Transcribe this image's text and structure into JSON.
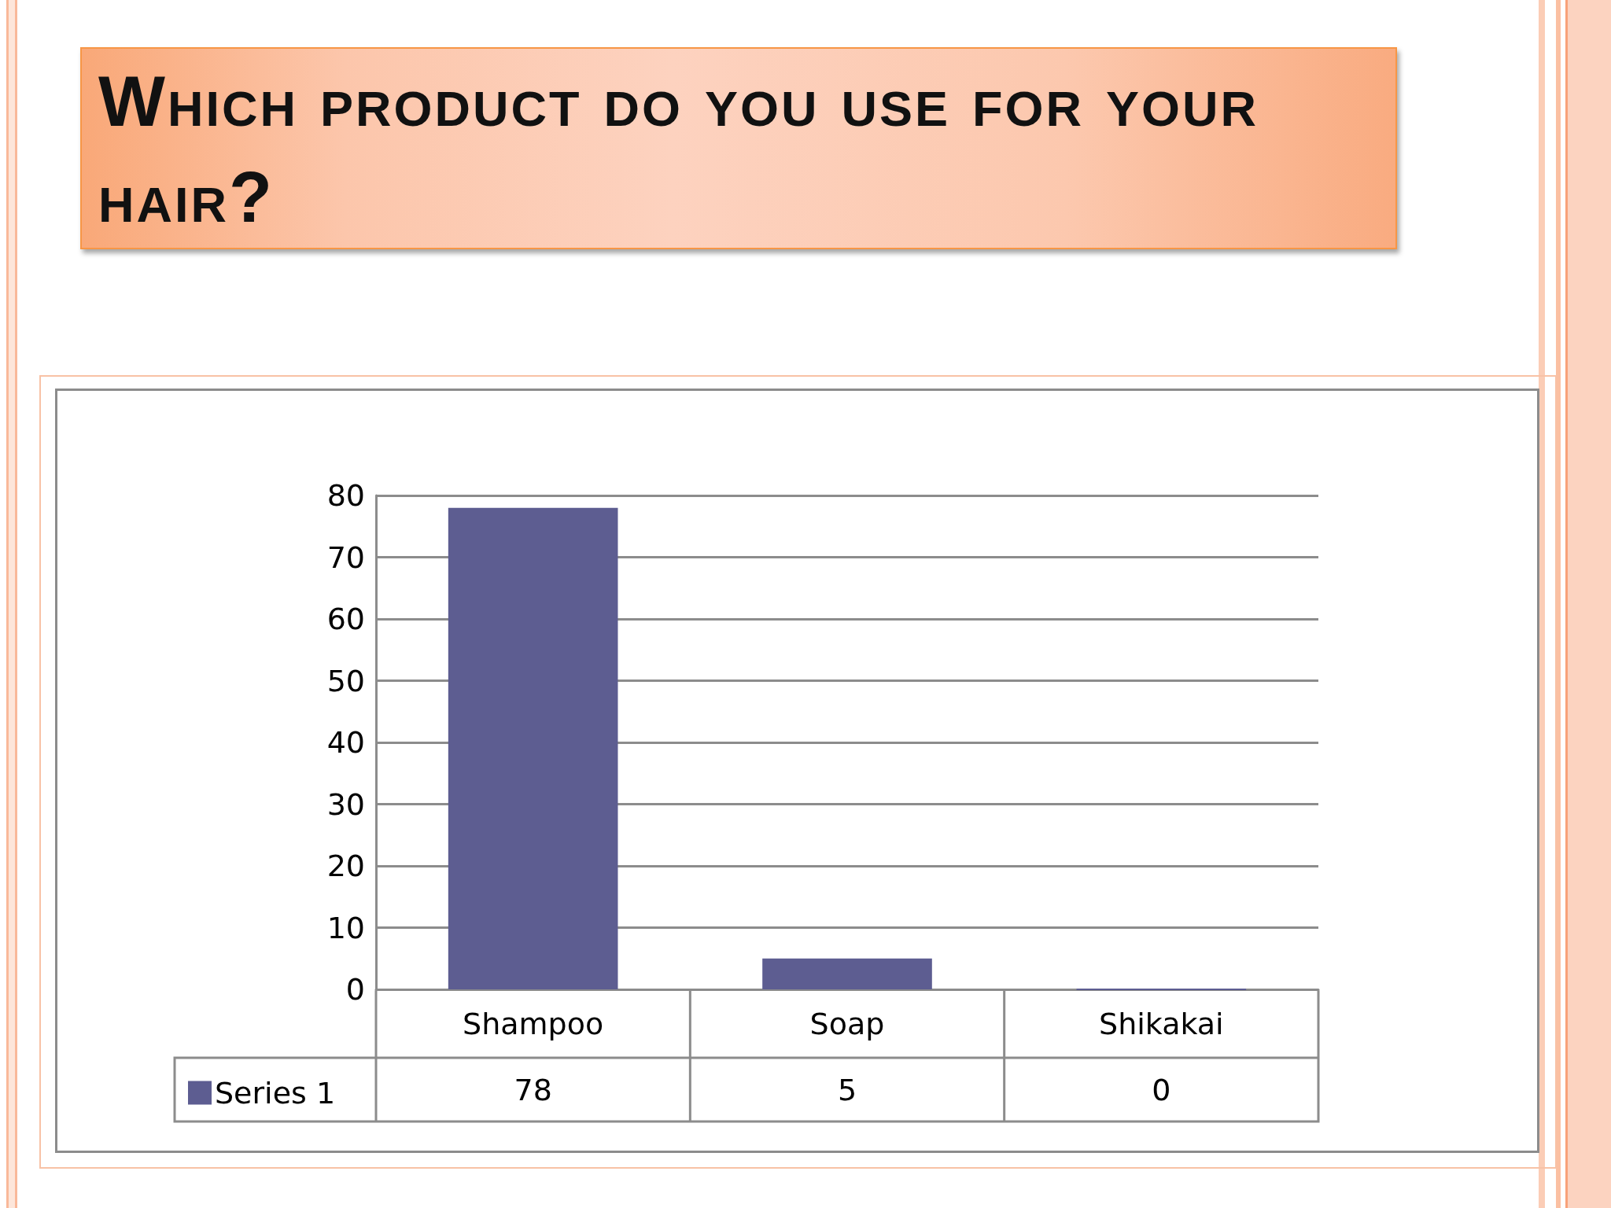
{
  "chart_data": {
    "type": "bar",
    "title": "Which product do you use for your hair?",
    "categories": [
      "Shampoo",
      "Soap",
      "Shikakai"
    ],
    "series": [
      {
        "name": "Series 1",
        "color": "#5d5d91",
        "values": [
          78,
          5,
          0
        ]
      }
    ],
    "ylim": [
      0,
      80
    ],
    "yticks": [
      0,
      10,
      20,
      30,
      40,
      50,
      60,
      70,
      80
    ],
    "grid": "y",
    "legend": "bottom left",
    "data_labels": true
  }
}
